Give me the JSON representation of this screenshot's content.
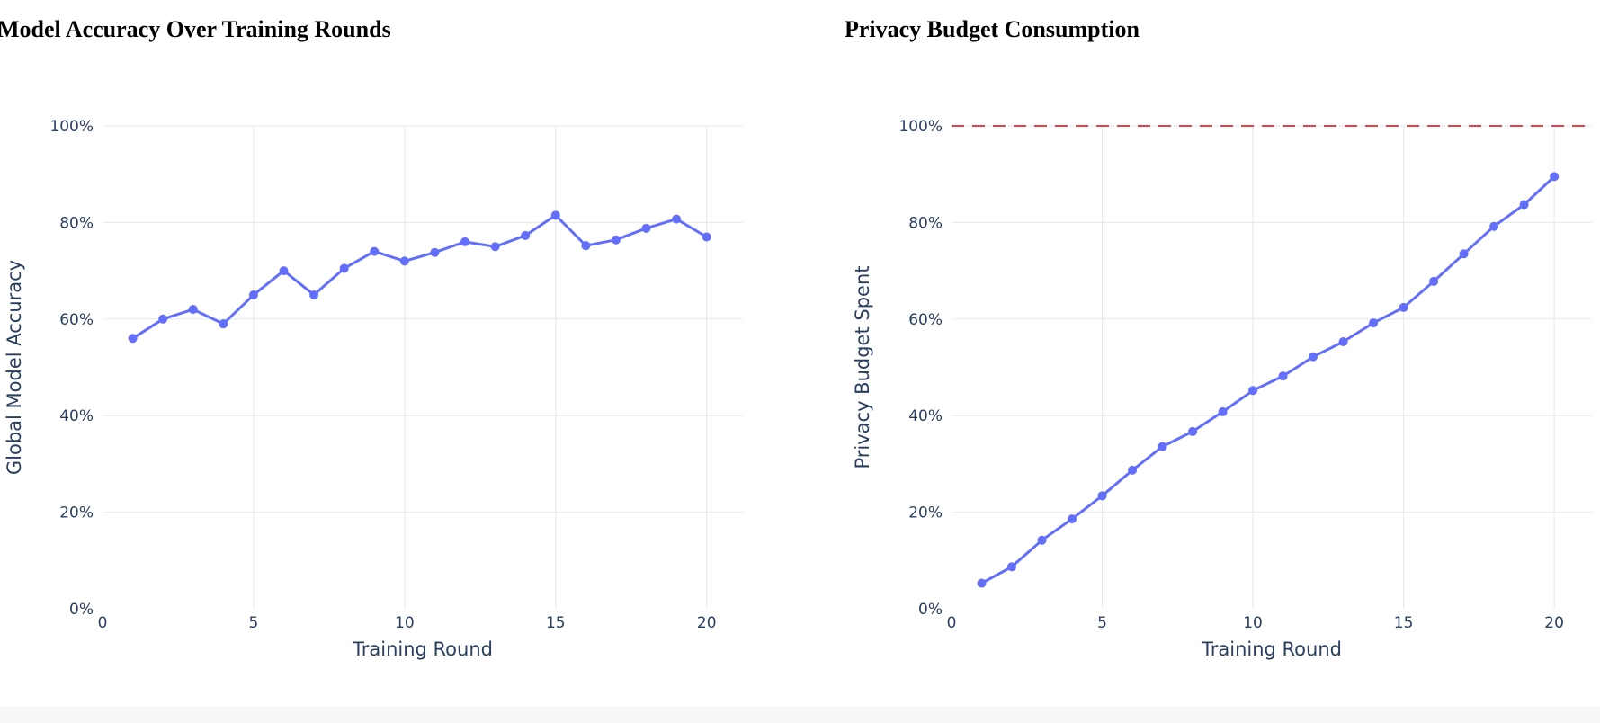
{
  "chart_data": [
    {
      "type": "line",
      "title": "Model Accuracy Over Training Rounds",
      "xlabel": "Training Round",
      "ylabel": "Global Model Accuracy",
      "x_ticks": [
        "0",
        "5",
        "10",
        "15",
        "20"
      ],
      "y_ticks": [
        "0%",
        "20%",
        "40%",
        "60%",
        "80%",
        "100%"
      ],
      "xlim": [
        0,
        21.2
      ],
      "ylim": [
        0,
        1
      ],
      "grid": true,
      "colors": {
        "line": "#636efa"
      },
      "x": [
        1,
        2,
        3,
        4,
        5,
        6,
        7,
        8,
        9,
        10,
        11,
        12,
        13,
        14,
        15,
        16,
        17,
        18,
        19,
        20
      ],
      "values": [
        0.56,
        0.6,
        0.62,
        0.59,
        0.65,
        0.7,
        0.65,
        0.705,
        0.74,
        0.72,
        0.738,
        0.76,
        0.75,
        0.773,
        0.815,
        0.752,
        0.764,
        0.788,
        0.807,
        0.77
      ]
    },
    {
      "type": "line",
      "title": "Privacy Budget Consumption",
      "xlabel": "Training Round",
      "ylabel": "Privacy Budget Spent",
      "x_ticks": [
        "0",
        "5",
        "10",
        "15",
        "20"
      ],
      "y_ticks": [
        "0%",
        "20%",
        "40%",
        "60%",
        "80%",
        "100%"
      ],
      "xlim": [
        0,
        21.25
      ],
      "ylim": [
        0,
        1
      ],
      "grid": true,
      "threshold": {
        "value": 1.0,
        "style": "dashed",
        "color": "#e5414a"
      },
      "colors": {
        "line": "#636efa"
      },
      "x": [
        1,
        2,
        3,
        4,
        5,
        6,
        7,
        8,
        9,
        10,
        11,
        12,
        13,
        14,
        15,
        16,
        17,
        18,
        19,
        20
      ],
      "values": [
        0.053,
        0.087,
        0.142,
        0.186,
        0.234,
        0.287,
        0.336,
        0.367,
        0.408,
        0.452,
        0.482,
        0.522,
        0.553,
        0.592,
        0.624,
        0.678,
        0.735,
        0.792,
        0.837,
        0.895
      ]
    }
  ]
}
